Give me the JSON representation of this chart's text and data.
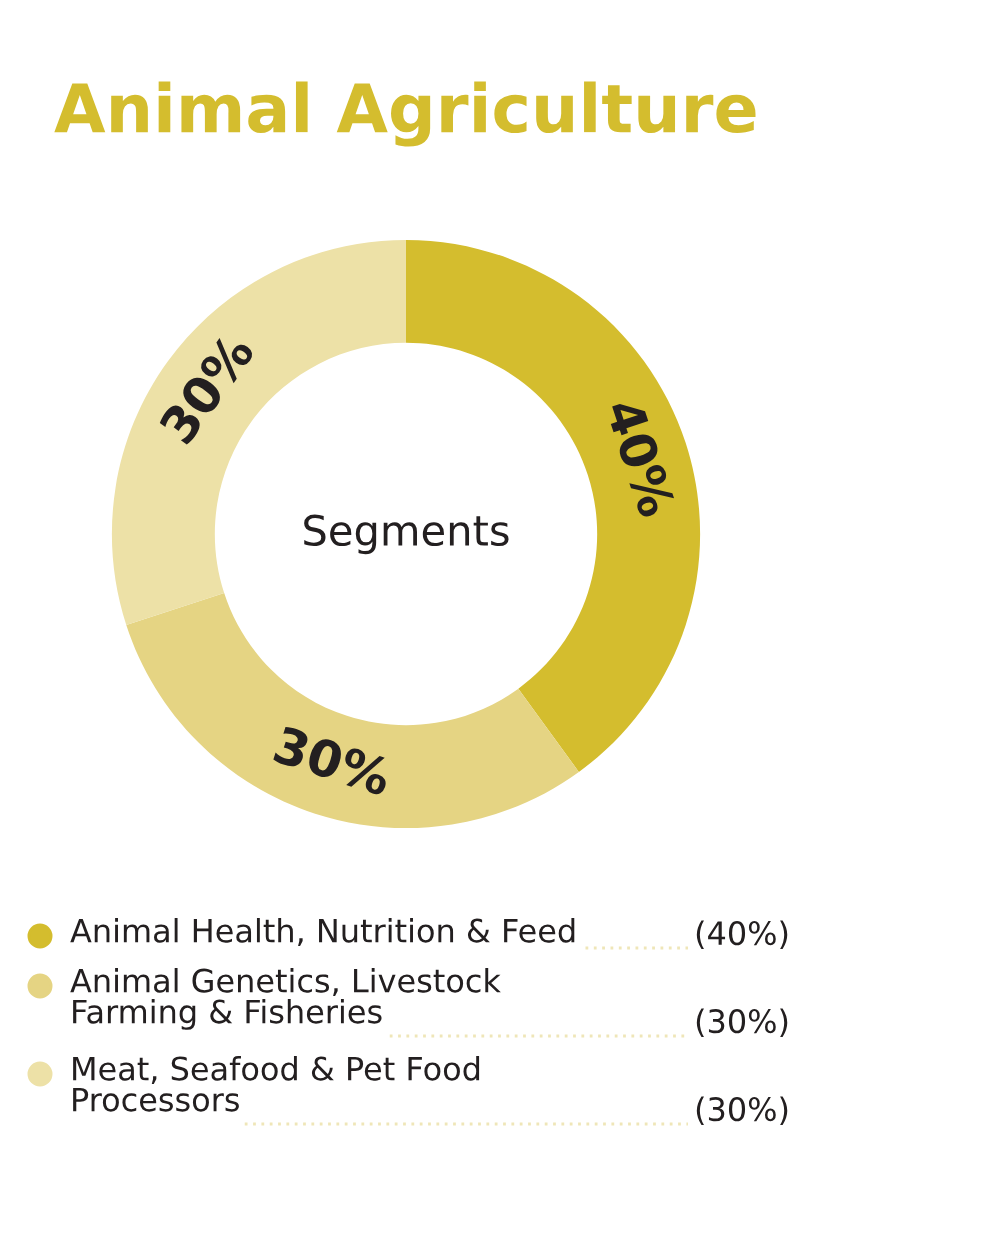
{
  "chart_data": {
    "type": "donut",
    "title": "Animal Agriculture",
    "categories": [
      "Animal Health, Nutrition & Feed",
      "Animal Genetics, Livestock\nFarming & Fisheries",
      "Meat, Seafood & Pet Food\nProcessors"
    ],
    "values": [
      40,
      30,
      30
    ],
    "colors": [
      "#d4bd2e",
      "#e5d483",
      "#ede1a7"
    ],
    "value_labels": [
      "40%",
      "30%",
      "30%"
    ],
    "annotations": [
      "Segments",
      "(40%)",
      "(30%)",
      "(30%)"
    ],
    "legend": "bottom"
  }
}
